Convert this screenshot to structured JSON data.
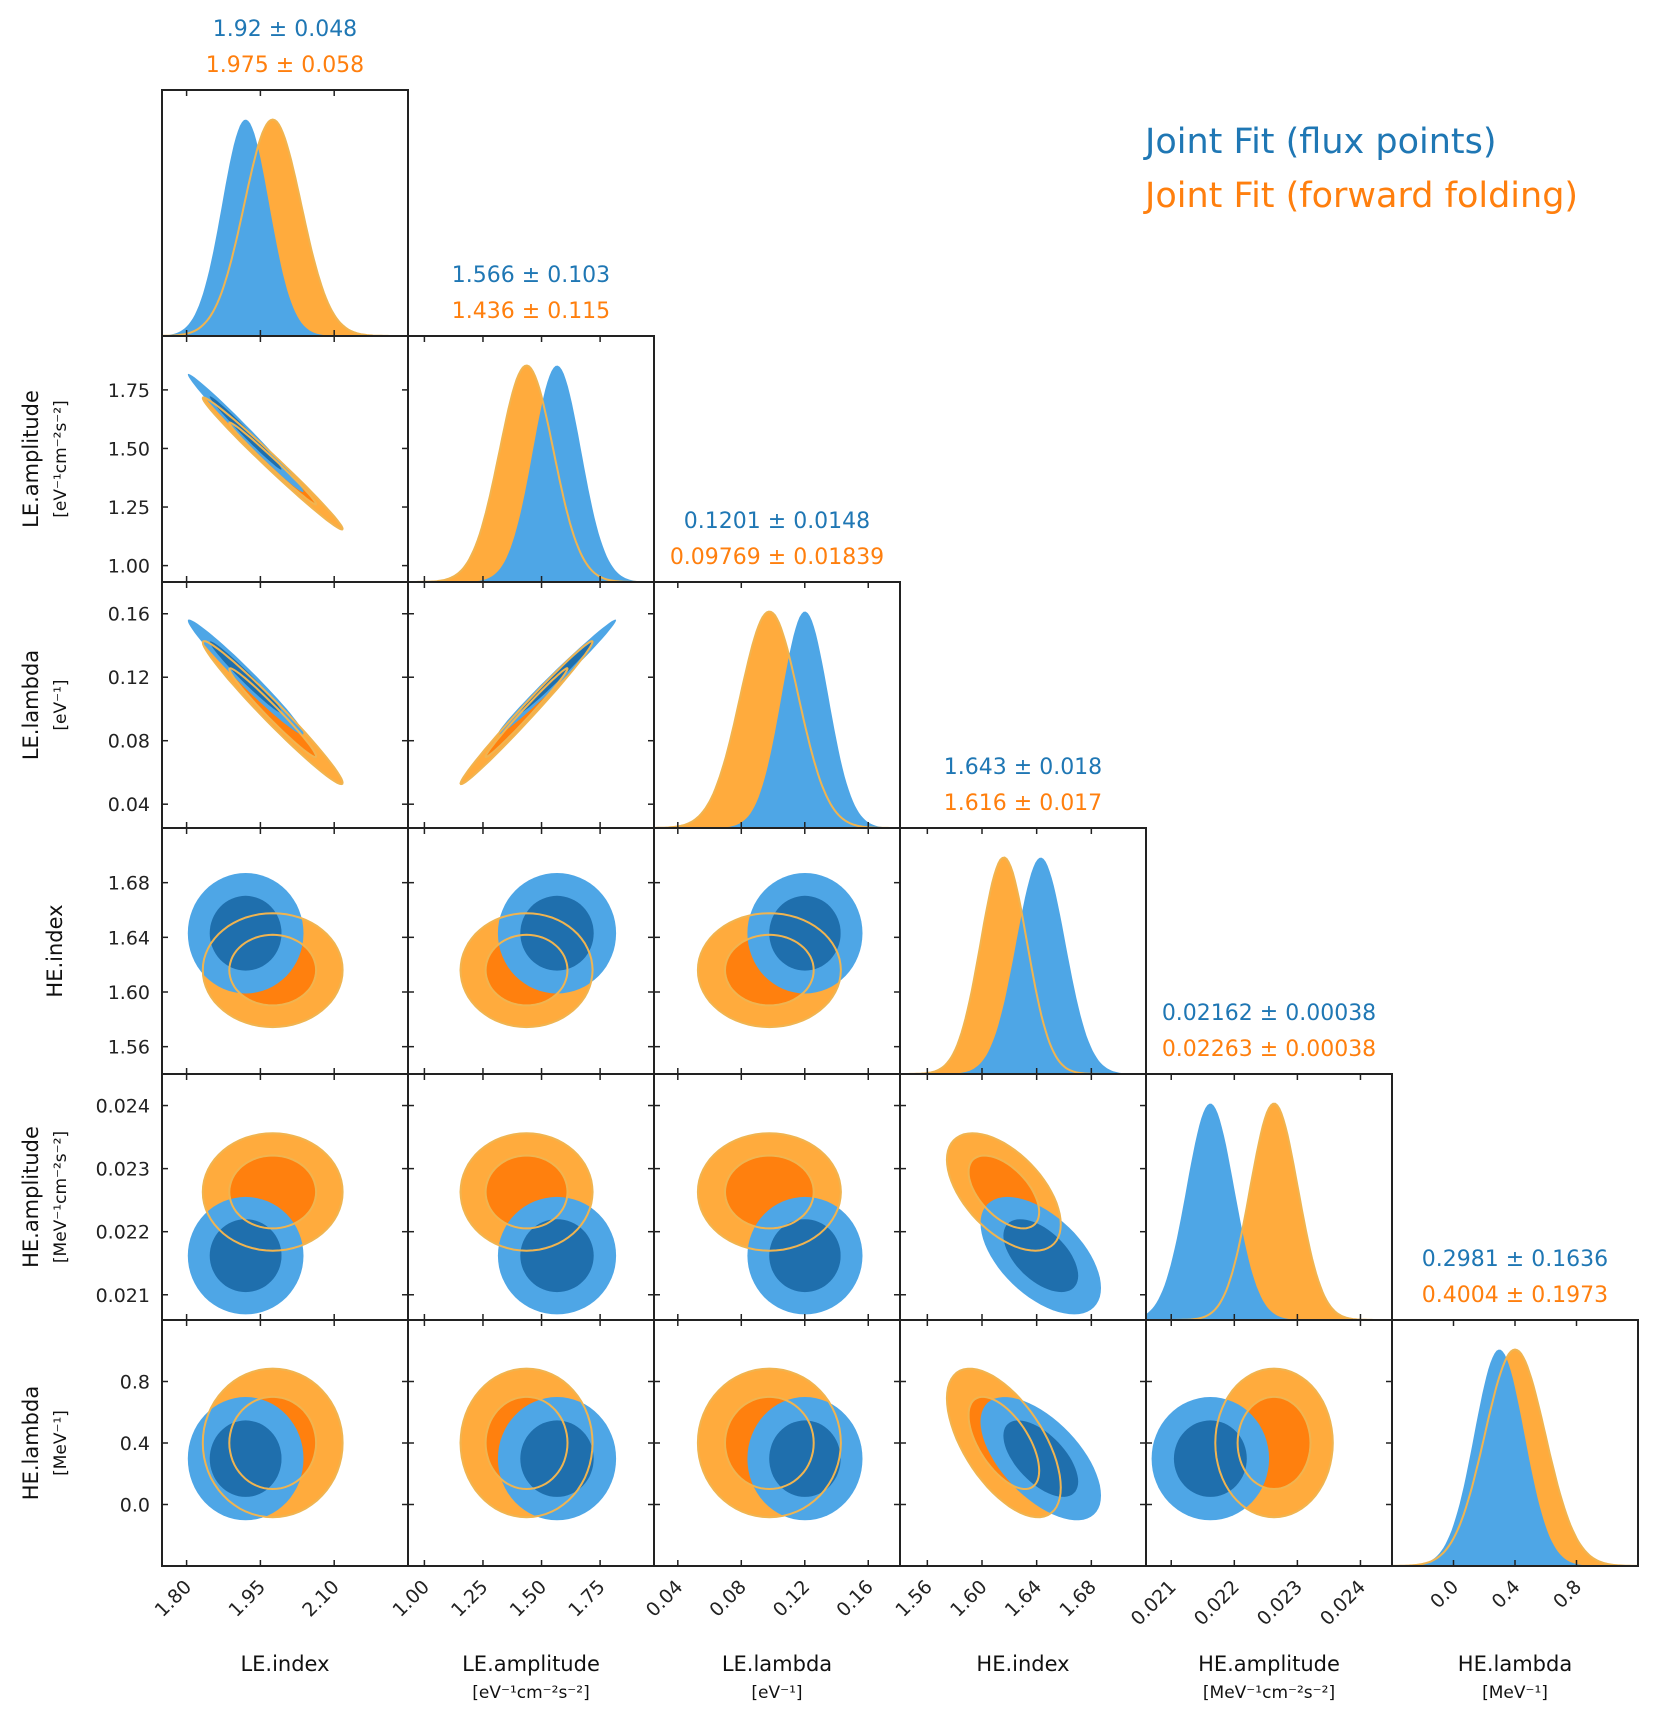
{
  "chart_data": {
    "type": "corner",
    "colors": {
      "flux_points": "#1f77b4",
      "forward_folding": "#ff7f0e",
      "flux_points_fill": "#4ea6e6",
      "forward_folding_fill": "#ffab3d"
    },
    "legend": {
      "placement": "top-right",
      "entries": [
        {
          "label": "Joint Fit (flux points)",
          "color": "#1f77b4"
        },
        {
          "label": "Joint Fit (forward folding)",
          "color": "#ff7f0e"
        }
      ]
    },
    "parameters": [
      {
        "id": "LE.index",
        "label": "LE.index",
        "unit": "",
        "range": [
          1.75,
          2.25
        ],
        "ticks": [
          1.8,
          1.95,
          2.1
        ],
        "tick_labels": [
          "1.80",
          "1.95",
          "2.10"
        ],
        "stats": {
          "flux_points": "1.92 ± 0.048",
          "forward_folding": "1.975 ± 0.058"
        }
      },
      {
        "id": "LE.amplitude",
        "label": "LE.amplitude",
        "unit": "[eV⁻¹cm⁻²s⁻²]",
        "range": [
          0.93,
          1.98
        ],
        "ticks": [
          1.0,
          1.25,
          1.5,
          1.75
        ],
        "tick_labels": [
          "1.00",
          "1.25",
          "1.50",
          "1.75"
        ],
        "stats": {
          "flux_points": "1.566 ± 0.103",
          "forward_folding": "1.436 ± 0.115"
        }
      },
      {
        "id": "LE.lambda",
        "label": "LE.lambda",
        "unit": "[eV⁻¹]",
        "range": [
          0.025,
          0.18
        ],
        "ticks": [
          0.04,
          0.08,
          0.12,
          0.16
        ],
        "tick_labels": [
          "0.04",
          "0.08",
          "0.12",
          "0.16"
        ],
        "stats": {
          "flux_points": "0.1201 ± 0.0148",
          "forward_folding": "0.09769 ± 0.01839"
        }
      },
      {
        "id": "HE.index",
        "label": "HE.index",
        "unit": "",
        "range": [
          1.54,
          1.72
        ],
        "ticks": [
          1.56,
          1.6,
          1.64,
          1.68
        ],
        "tick_labels": [
          "1.56",
          "1.60",
          "1.64",
          "1.68"
        ],
        "stats": {
          "flux_points": "1.643 ± 0.018",
          "forward_folding": "1.616 ± 0.017"
        }
      },
      {
        "id": "HE.amplitude",
        "label": "HE.amplitude",
        "unit": "[MeV⁻¹cm⁻²s⁻²]",
        "range": [
          0.0206,
          0.0245
        ],
        "ticks": [
          0.021,
          0.022,
          0.023,
          0.024
        ],
        "tick_labels": [
          "0.021",
          "0.022",
          "0.023",
          "0.024"
        ],
        "stats": {
          "flux_points": "0.02162 ± 0.00038",
          "forward_folding": "0.02263 ± 0.00038"
        }
      },
      {
        "id": "HE.lambda",
        "label": "HE.lambda",
        "unit": "[MeV⁻¹]",
        "range": [
          -0.4,
          1.2
        ],
        "ticks": [
          0.0,
          0.4,
          0.8
        ],
        "tick_labels": [
          "0.0",
          "0.4",
          "0.8"
        ],
        "stats": {
          "flux_points": "0.2981 ± 0.1636",
          "forward_folding": "0.4004 ± 0.1973"
        }
      }
    ],
    "series": [
      {
        "name": "Joint Fit (flux points)",
        "mean": [
          1.92,
          1.566,
          0.1201,
          1.643,
          0.02162,
          0.2981
        ],
        "sigma": [
          0.048,
          0.103,
          0.0148,
          0.018,
          0.00038,
          0.1636
        ]
      },
      {
        "name": "Joint Fit (forward folding)",
        "mean": [
          1.975,
          1.436,
          0.09769,
          1.616,
          0.02263,
          0.4004
        ],
        "sigma": [
          0.058,
          0.115,
          0.01839,
          0.017,
          0.00038,
          0.1973
        ]
      }
    ],
    "correlations": {
      "1-0": -0.99,
      "2-0": -0.98,
      "2-1": 0.99,
      "3-0": 0.0,
      "3-1": 0.0,
      "3-2": 0.0,
      "4-0": 0.0,
      "4-1": 0.0,
      "4-2": 0.0,
      "4-3": -0.55,
      "5-0": 0.0,
      "5-1": 0.0,
      "5-2": 0.0,
      "5-3": -0.6,
      "5-4": 0.0
    }
  }
}
